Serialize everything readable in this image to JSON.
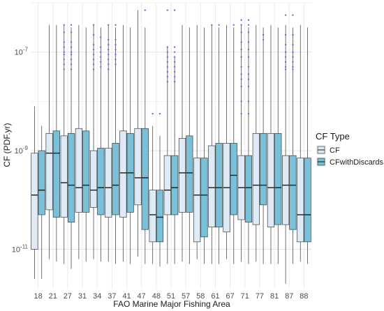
{
  "chart_data": {
    "type": "boxplot",
    "xlabel": "FAO Marine Major Fishing Area",
    "ylabel": "CF (PDF.yr)",
    "y_scale": "log10",
    "ylim_log10": [
      -11.8,
      -6.0
    ],
    "y_ticks": [
      {
        "exp": -11,
        "base": "10",
        "sup": "-11"
      },
      {
        "exp": -9,
        "base": "10",
        "sup": "-9"
      },
      {
        "exp": -7,
        "base": "10",
        "sup": "-7"
      }
    ],
    "grid": true,
    "legend": {
      "title": "CF Type",
      "position": "right",
      "items": [
        {
          "label": "CF",
          "color": "#deebf7"
        },
        {
          "label": "CFwithDiscards",
          "color": "#79c0d8"
        }
      ]
    },
    "categories": [
      "18",
      "21",
      "27",
      "31",
      "34",
      "37",
      "41",
      "47",
      "48",
      "51",
      "57",
      "58",
      "61",
      "67",
      "71",
      "77",
      "81",
      "87",
      "88"
    ],
    "outlier_color": "#6a6ae6",
    "series": [
      {
        "name": "CF",
        "color": "#deebf7",
        "boxes": [
          {
            "lo": -11.6,
            "q1": -11.0,
            "med": -9.9,
            "q3": -9.05,
            "hi": -8.1
          },
          {
            "lo": -11.2,
            "q1": -10.2,
            "med": -9.05,
            "q3": -8.65,
            "hi": -6.45
          },
          {
            "lo": -11.3,
            "q1": -10.35,
            "med": -9.65,
            "q3": -8.7,
            "hi": -6.45
          },
          {
            "lo": -11.2,
            "q1": -10.25,
            "med": -9.75,
            "q3": -8.55,
            "hi": -6.45
          },
          {
            "lo": -11.2,
            "q1": -10.15,
            "med": -9.8,
            "q3": -9.0,
            "hi": -6.45
          },
          {
            "lo": -11.25,
            "q1": -10.35,
            "med": -9.75,
            "q3": -8.95,
            "hi": -6.45
          },
          {
            "lo": -11.25,
            "q1": -10.35,
            "med": -9.45,
            "q3": -8.6,
            "hi": -6.45
          },
          {
            "lo": -11.15,
            "q1": -10.1,
            "med": -9.55,
            "q3": -8.55,
            "hi": -6.15
          },
          {
            "lo": -11.3,
            "q1": -10.85,
            "med": -10.3,
            "q3": -9.8,
            "hi": -8.5
          },
          {
            "lo": -11.3,
            "q1": -10.3,
            "med": -9.8,
            "q3": -9.1,
            "hi": -6.9
          },
          {
            "lo": -11.25,
            "q1": -10.25,
            "med": -9.45,
            "q3": -8.75,
            "hi": -6.45
          },
          {
            "lo": -11.2,
            "q1": -10.85,
            "med": -9.9,
            "q3": -9.15,
            "hi": -6.45
          },
          {
            "lo": -11.3,
            "q1": -10.55,
            "med": -9.75,
            "q3": -8.9,
            "hi": -6.45
          },
          {
            "lo": -11.2,
            "q1": -10.65,
            "med": -9.75,
            "q3": -8.85,
            "hi": -6.45
          },
          {
            "lo": -11.25,
            "q1": -10.4,
            "med": -9.75,
            "q3": -9.1,
            "hi": -6.45
          },
          {
            "lo": -11.25,
            "q1": -10.5,
            "med": -9.7,
            "q3": -8.65,
            "hi": -6.45
          },
          {
            "lo": -11.3,
            "q1": -10.55,
            "med": -9.75,
            "q3": -8.65,
            "hi": -6.45
          },
          {
            "lo": -11.7,
            "q1": -10.5,
            "med": -9.7,
            "q3": -9.1,
            "hi": -6.45
          },
          {
            "lo": -11.25,
            "q1": -10.85,
            "med": -10.3,
            "q3": -9.15,
            "hi": -6.45
          }
        ]
      },
      {
        "name": "CFwithDiscards",
        "color": "#79c0d8",
        "boxes": [
          {
            "lo": -11.6,
            "q1": -10.3,
            "med": -9.8,
            "q3": -9.0,
            "hi": -8.5
          },
          {
            "lo": -11.25,
            "q1": -10.35,
            "med": -9.05,
            "q3": -8.6,
            "hi": -6.45
          },
          {
            "lo": -11.4,
            "q1": -10.45,
            "med": -9.7,
            "q3": -8.65,
            "hi": -6.5
          },
          {
            "lo": -11.25,
            "q1": -10.25,
            "med": -9.7,
            "q3": -8.6,
            "hi": -6.5
          },
          {
            "lo": -11.25,
            "q1": -10.3,
            "med": -9.75,
            "q3": -8.95,
            "hi": -6.5
          },
          {
            "lo": -11.3,
            "q1": -10.3,
            "med": -9.7,
            "q3": -8.85,
            "hi": -6.5
          },
          {
            "lo": -11.3,
            "q1": -10.25,
            "med": -9.45,
            "q3": -8.65,
            "hi": -6.5
          },
          {
            "lo": -11.3,
            "q1": -10.6,
            "med": -9.55,
            "q3": -8.55,
            "hi": -6.5
          },
          {
            "lo": -11.35,
            "q1": -10.85,
            "med": -10.35,
            "q3": -9.8,
            "hi": -8.7
          },
          {
            "lo": -11.3,
            "q1": -10.3,
            "med": -9.75,
            "q3": -9.1,
            "hi": -7.1
          },
          {
            "lo": -11.3,
            "q1": -10.25,
            "med": -9.45,
            "q3": -8.7,
            "hi": -6.5
          },
          {
            "lo": -11.3,
            "q1": -10.75,
            "med": -9.9,
            "q3": -9.15,
            "hi": -6.5
          },
          {
            "lo": -11.3,
            "q1": -10.55,
            "med": -9.75,
            "q3": -8.85,
            "hi": -6.5
          },
          {
            "lo": -11.3,
            "q1": -10.3,
            "med": -9.5,
            "q3": -8.85,
            "hi": -6.5
          },
          {
            "lo": -11.3,
            "q1": -10.45,
            "med": -9.75,
            "q3": -9.1,
            "hi": -6.5
          },
          {
            "lo": -11.3,
            "q1": -10.1,
            "med": -9.7,
            "q3": -8.65,
            "hi": -6.5
          },
          {
            "lo": -11.3,
            "q1": -10.5,
            "med": -9.75,
            "q3": -8.65,
            "hi": -6.5
          },
          {
            "lo": -11.3,
            "q1": -10.6,
            "med": -9.7,
            "q3": -9.1,
            "hi": -6.5
          },
          {
            "lo": -11.3,
            "q1": -10.85,
            "med": -10.3,
            "q3": -9.15,
            "hi": -6.5
          }
        ]
      }
    ],
    "outliers": [
      {
        "category": "27",
        "series": "CF",
        "y": [
          -6.45,
          -6.6,
          -6.8,
          -6.9,
          -7.0,
          -7.05,
          -7.15,
          -7.25,
          -7.35
        ]
      },
      {
        "category": "27",
        "series": "CFwithDiscards",
        "y": [
          -6.45,
          -6.6,
          -6.8,
          -6.9,
          -7.0,
          -7.05,
          -7.15,
          -7.25,
          -7.35
        ]
      },
      {
        "category": "34",
        "series": "CF",
        "y": [
          -6.45,
          -6.65,
          -6.85,
          -6.95,
          -7.05,
          -7.15,
          -7.25,
          -7.35
        ]
      },
      {
        "category": "34",
        "series": "CFwithDiscards",
        "y": [
          -6.7,
          -6.9,
          -7.0,
          -7.1,
          -7.2,
          -7.3
        ]
      },
      {
        "category": "37",
        "series": "CF",
        "y": [
          -6.45,
          -6.75,
          -6.85,
          -6.95,
          -7.05,
          -7.15,
          -7.25,
          -7.35
        ]
      },
      {
        "category": "37",
        "series": "CFwithDiscards",
        "y": [
          -6.45,
          -6.75,
          -6.85,
          -6.95,
          -7.05,
          -7.15,
          -7.25
        ]
      },
      {
        "category": "47",
        "series": "CFwithDiscards",
        "y": [
          -6.15
        ]
      },
      {
        "category": "48",
        "series": "CF",
        "y": [
          -8.25
        ]
      },
      {
        "category": "48",
        "series": "CFwithDiscards",
        "y": [
          -8.25
        ]
      },
      {
        "category": "51",
        "series": "CF",
        "y": [
          -6.15,
          -6.9,
          -7.0,
          -7.1,
          -7.2,
          -7.3,
          -7.4,
          -7.5,
          -7.6
        ]
      },
      {
        "category": "51",
        "series": "CFwithDiscards",
        "y": [
          -6.15,
          -6.9,
          -7.0,
          -7.1,
          -7.2,
          -7.3,
          -7.4,
          -7.5,
          -7.6
        ]
      },
      {
        "category": "61",
        "series": "CF",
        "y": [
          -6.45
        ]
      },
      {
        "category": "61",
        "series": "CFwithDiscards",
        "y": [
          -6.45
        ]
      },
      {
        "category": "67",
        "series": "CFwithDiscards",
        "y": [
          -6.45
        ]
      },
      {
        "category": "71",
        "series": "CF",
        "y": [
          -6.35,
          -6.45,
          -6.6,
          -6.8,
          -6.95,
          -7.1,
          -7.3,
          -7.45,
          -7.55,
          -7.7,
          -8.0,
          -8.25
        ]
      },
      {
        "category": "71",
        "series": "CFwithDiscards",
        "y": [
          -6.35,
          -6.45,
          -6.6,
          -6.8,
          -6.95,
          -7.1,
          -7.3,
          -7.45,
          -7.55,
          -7.7,
          -8.0,
          -8.25
        ]
      },
      {
        "category": "77",
        "series": "CFwithDiscards",
        "y": [
          -6.65,
          -6.75
        ]
      },
      {
        "category": "87",
        "series": "CF",
        "y": [
          -6.25,
          -6.65,
          -6.85,
          -7.0,
          -7.1,
          -7.2,
          -7.3,
          -7.35
        ]
      },
      {
        "category": "87",
        "series": "CFwithDiscards",
        "y": [
          -6.25,
          -6.65,
          -6.85,
          -7.0,
          -7.1,
          -7.2,
          -7.3,
          -7.35
        ]
      }
    ]
  }
}
